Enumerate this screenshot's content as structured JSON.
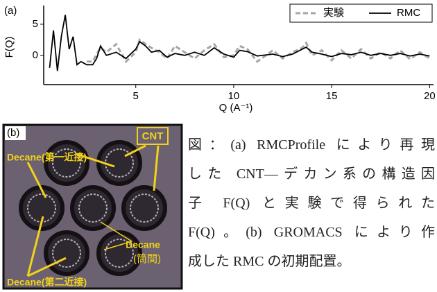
{
  "chart_data": {
    "type": "line",
    "panel_label": "(a)",
    "xlabel": "Q (A⁻¹)",
    "ylabel": "F(Q)",
    "x": [
      0.6,
      0.8,
      1.0,
      1.2,
      1.4,
      1.6,
      1.8,
      2.0,
      2.2,
      2.5,
      2.8,
      3.0,
      3.2,
      3.5,
      4.0,
      4.5,
      5.0,
      5.2,
      5.5,
      5.8,
      6.2,
      6.6,
      7.0,
      7.5,
      8.0,
      8.5,
      9.0,
      9.5,
      10.0,
      10.3,
      10.7,
      11.2,
      12.0,
      12.5,
      13.0,
      13.5,
      13.7,
      14.0,
      14.5,
      15.0,
      15.5,
      16.0,
      16.5,
      17.0,
      17.5,
      18.0,
      18.5,
      19.0,
      19.5,
      20.0
    ],
    "series": [
      {
        "name": "実験",
        "color": "#a6a6a6",
        "dashed": true,
        "values": [
          null,
          null,
          null,
          null,
          null,
          null,
          null,
          null,
          null,
          -1,
          -1,
          0.2,
          1.2,
          0.5,
          1.8,
          -1,
          0.5,
          2.5,
          1.8,
          1.2,
          0.5,
          -0.5,
          1.5,
          0.5,
          -0.5,
          0.8,
          1.8,
          -0.3,
          0,
          1.5,
          1,
          -1,
          0.8,
          -0.5,
          0.5,
          1.2,
          2,
          0,
          0.8,
          -0.8,
          0.8,
          -0.5,
          1,
          -0.5,
          0.5,
          -0.5,
          0.8,
          -0.6,
          0.5,
          -0.5
        ]
      },
      {
        "name": "RMC",
        "color": "#000000",
        "dashed": false,
        "values": [
          -2,
          4,
          -2.5,
          3,
          6.5,
          1,
          3,
          -1.5,
          -1,
          -1.5,
          -1.5,
          -0.5,
          1.5,
          0,
          0.5,
          -0.5,
          1,
          2.2,
          1.5,
          0.5,
          0.8,
          -0.3,
          0.3,
          0,
          0.5,
          0,
          1.2,
          0.2,
          -0.3,
          0.8,
          0.6,
          -0.1,
          0.2,
          -0.2,
          0.2,
          1.0,
          1.3,
          0.5,
          0.2,
          -0.2,
          0.3,
          0.1,
          0.5,
          0,
          0.3,
          0,
          0.3,
          -0.1,
          0.2,
          -0.1
        ]
      }
    ],
    "xlim": [
      0.3,
      20.2
    ],
    "xticks": [
      5,
      10,
      15,
      20
    ],
    "ylim": [
      -4.7,
      8
    ],
    "yticks": [
      0,
      5
    ],
    "legend": "upper right"
  },
  "figure_b": {
    "panel_label": "(b)",
    "cnt": "CNT",
    "decane_first": "Decane(第一近接)",
    "decane_between": "Decane",
    "decane_between_note": "(筒間)",
    "decane_second": "Decane(第二近接)"
  },
  "caption": {
    "lines": [
      "図：(a) RMCProfile により再現",
      "した CNT―デカン系の構造因",
      "子 F(Q) と実験で得られた",
      "F(Q)。(b) GROMACS により作",
      "成した RMC の初期配置。"
    ]
  }
}
